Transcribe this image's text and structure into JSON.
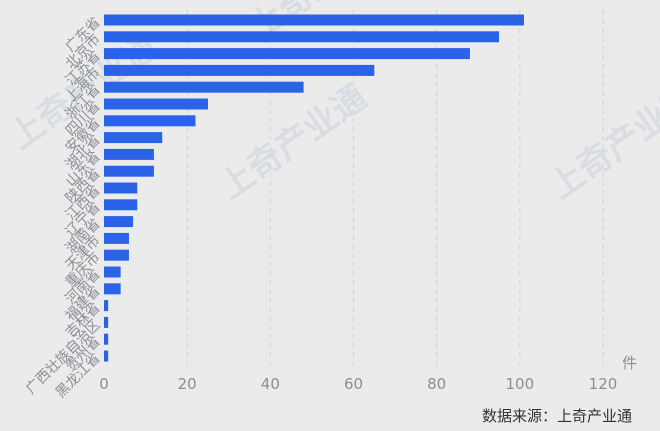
{
  "chart_data": {
    "type": "bar",
    "orientation": "horizontal",
    "categories": [
      "广东省",
      "北京市",
      "江苏省",
      "上海市",
      "浙江省",
      "四川省",
      "安徽省",
      "湖北省",
      "山东省",
      "陕西省",
      "江西省",
      "辽宁省",
      "湖南省",
      "天津市",
      "重庆市",
      "河南省",
      "福建省",
      "吉林省",
      "广西壮族自治区",
      "贵州省",
      "黑龙江省"
    ],
    "values": [
      101,
      95,
      88,
      65,
      48,
      25,
      22,
      14,
      12,
      12,
      8,
      8,
      7,
      6,
      6,
      4,
      4,
      1,
      1,
      1,
      1
    ],
    "xlim": [
      0,
      120
    ],
    "xticks": [
      0,
      20,
      40,
      60,
      80,
      100,
      120
    ],
    "xunit": "件",
    "grid": "vertical-dashed",
    "color": "#2a63e8"
  },
  "source": "数据来源：上奇产业通",
  "watermark": "上奇产业通"
}
